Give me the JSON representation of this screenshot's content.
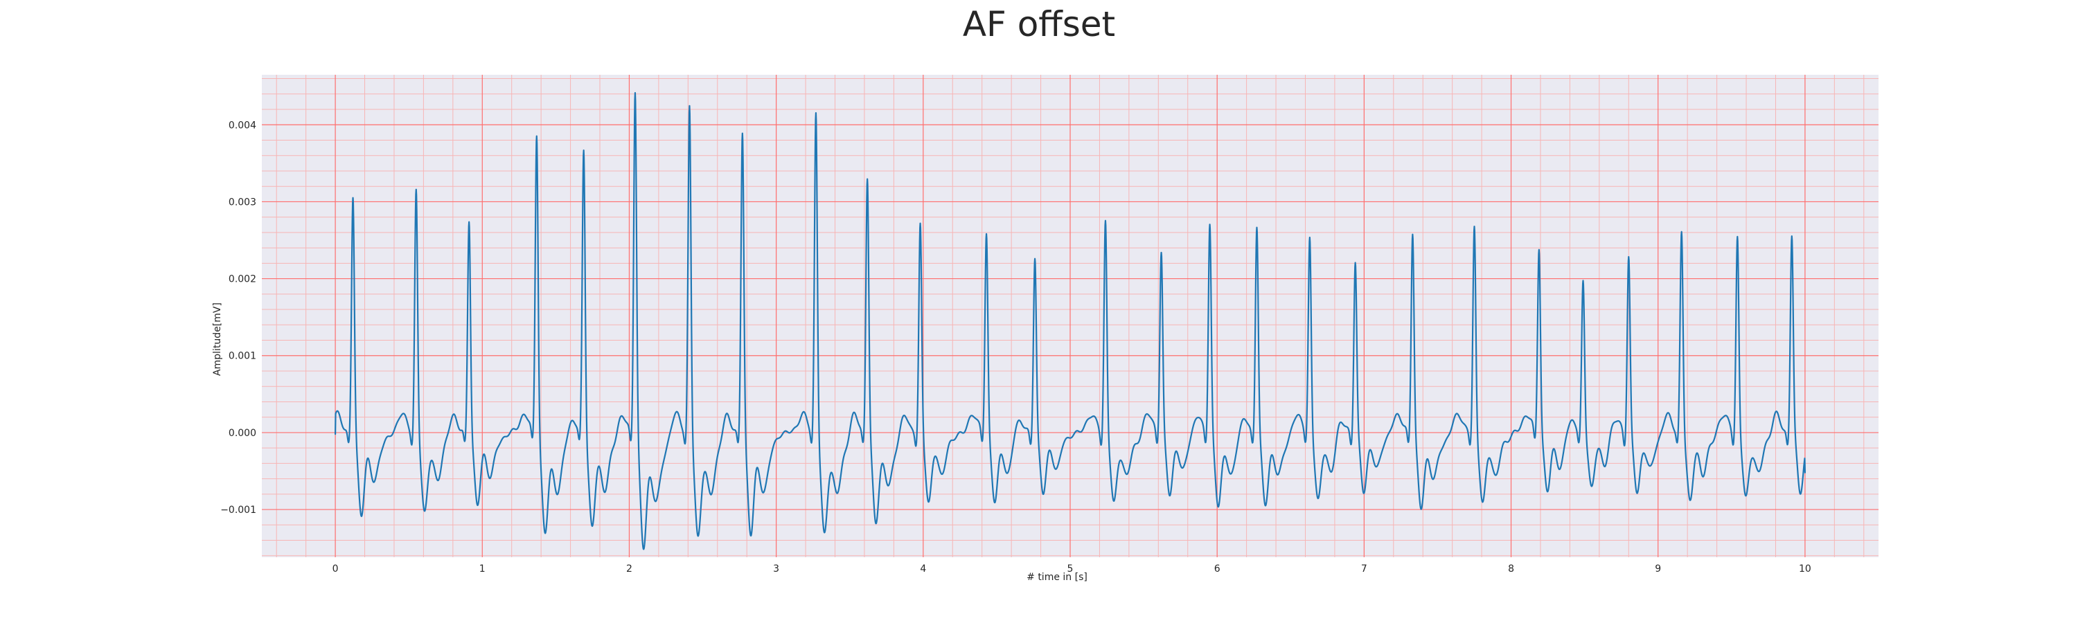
{
  "chart_data": {
    "type": "line",
    "title": "AF offset",
    "xlabel": "# time in [s]",
    "ylabel": "Amplitude[mV]",
    "xlim": [
      -0.5,
      10.5
    ],
    "ylim": [
      -0.00162,
      0.00465
    ],
    "x_ticks": [
      0,
      1,
      2,
      3,
      4,
      5,
      6,
      7,
      8,
      9,
      10
    ],
    "x_tick_labels": [
      "0",
      "1",
      "2",
      "3",
      "4",
      "5",
      "6",
      "7",
      "8",
      "9",
      "10"
    ],
    "y_ticks": [
      -0.001,
      0.0,
      0.001,
      0.002,
      0.003,
      0.004
    ],
    "y_tick_labels": [
      "−0.001",
      "0.000",
      "0.001",
      "0.002",
      "0.003",
      "0.004"
    ],
    "grid": true,
    "legend": "none",
    "colors": {
      "line": "#1f77b4",
      "plot_background": "#eaeaf2",
      "major_grid": "#ff6e6e",
      "minor_grid": "#f7b5b5",
      "title": "#262626",
      "text": "#262626"
    },
    "series": [
      {
        "beats": [
          {
            "t": 0.12,
            "peak": 0.00296,
            "trough": -0.0009
          },
          {
            "t": 0.55,
            "peak": 0.00302,
            "trough": -0.00088
          },
          {
            "t": 0.91,
            "peak": 0.00266,
            "trough": -0.00079
          },
          {
            "t": 1.37,
            "peak": 0.0038,
            "trough": -0.00114
          },
          {
            "t": 1.69,
            "peak": 0.00359,
            "trough": -0.00107
          },
          {
            "t": 2.04,
            "peak": 0.00437,
            "trough": -0.00132
          },
          {
            "t": 2.41,
            "peak": 0.00414,
            "trough": -0.00118
          },
          {
            "t": 2.77,
            "peak": 0.0038,
            "trough": -0.00113
          },
          {
            "t": 3.27,
            "peak": 0.00407,
            "trough": -0.00116
          },
          {
            "t": 3.62,
            "peak": 0.00322,
            "trough": -0.001
          },
          {
            "t": 3.98,
            "peak": 0.00258,
            "trough": -0.00076
          },
          {
            "t": 4.43,
            "peak": 0.00247,
            "trough": -0.00075
          },
          {
            "t": 4.76,
            "peak": 0.00215,
            "trough": -0.00065
          },
          {
            "t": 5.24,
            "peak": 0.00265,
            "trough": -0.00079
          },
          {
            "t": 5.62,
            "peak": 0.00222,
            "trough": -0.00066
          },
          {
            "t": 5.95,
            "peak": 0.00259,
            "trough": -0.00079
          },
          {
            "t": 6.27,
            "peak": 0.00258,
            "trough": -0.00078
          },
          {
            "t": 6.63,
            "peak": 0.00239,
            "trough": -0.00073
          },
          {
            "t": 6.94,
            "peak": 0.0021,
            "trough": -0.00063
          },
          {
            "t": 7.33,
            "peak": 0.00252,
            "trough": -0.00085
          },
          {
            "t": 7.75,
            "peak": 0.00256,
            "trough": -0.00078
          },
          {
            "t": 8.19,
            "peak": 0.00229,
            "trough": -0.00063
          },
          {
            "t": 8.49,
            "peak": 0.00183,
            "trough": -0.00059
          },
          {
            "t": 8.8,
            "peak": 0.00217,
            "trough": -0.00065
          },
          {
            "t": 9.16,
            "peak": 0.00249,
            "trough": -0.00075
          },
          {
            "t": 9.54,
            "peak": 0.00244,
            "trough": -0.00073
          },
          {
            "t": 9.91,
            "peak": 0.00246,
            "trough": -0.00064
          }
        ],
        "x_range": [
          0.0,
          10.0
        ],
        "start_value": -2e-05,
        "end_value": -0.00052
      }
    ]
  }
}
